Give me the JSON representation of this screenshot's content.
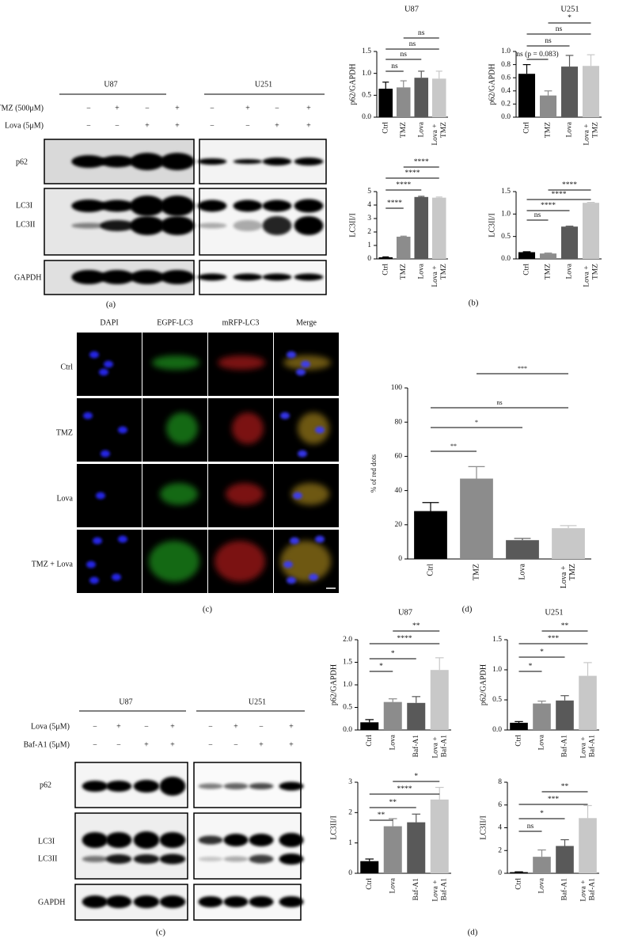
{
  "figure": {
    "panel_labels": [
      "(a)",
      "(b)",
      "(c)",
      "(d)",
      "(c)",
      "(d)"
    ],
    "blots": [
      {
        "cell_lines": [
          "U87",
          "U251"
        ],
        "treatments": [
          {
            "label": "TMZ (500μM)",
            "signs": [
              "−",
              "+",
              "−",
              "+"
            ]
          },
          {
            "label": "Lova (5μM)",
            "signs": [
              "−",
              "−",
              "+",
              "+"
            ]
          }
        ],
        "bands": [
          "p62",
          "LC3I",
          "LC3II",
          "GAPDH"
        ]
      },
      {
        "cell_lines": [
          "U87",
          "U251"
        ],
        "treatments": [
          {
            "label": "Lova (5μM)",
            "signs": [
              "−",
              "+",
              "−",
              "+"
            ]
          },
          {
            "label": "Baf-A1 (5μM)",
            "signs": [
              "−",
              "−",
              "+",
              "+"
            ]
          }
        ],
        "bands": [
          "p62",
          "LC3I",
          "LC3II",
          "GAPDH"
        ]
      }
    ],
    "microscopy": {
      "channels": [
        "DAPI",
        "EGPF-LC3",
        "mRFP-LC3",
        "Merge"
      ],
      "conditions": [
        "Ctrl",
        "TMZ",
        "Lova",
        "TMZ + Lova"
      ]
    }
  },
  "chart_data": [
    {
      "type": "bar",
      "title": "U87",
      "ylabel": "p62/GAPDH",
      "categories": [
        "Ctrl",
        "TMZ",
        "Lova",
        "Lova + TMZ"
      ],
      "values": [
        0.65,
        0.68,
        0.9,
        0.88
      ],
      "errors": [
        0.15,
        0.15,
        0.15,
        0.17
      ],
      "colors": [
        "#000000",
        "#8c8c8c",
        "#595959",
        "#c8c8c8"
      ],
      "ylim": [
        0,
        1.5
      ],
      "yticks": [
        {
          "value": 0,
          "label": "0.0"
        },
        {
          "value": 0.5,
          "label": "0.5"
        },
        {
          "value": 1,
          "label": "1.0"
        },
        {
          "value": 1.5,
          "label": "1.5"
        }
      ],
      "comparisons": [
        {
          "groups": [
            "Ctrl",
            "TMZ"
          ],
          "label": "ns"
        },
        {
          "groups": [
            "Ctrl",
            "Lova"
          ],
          "label": "ns"
        },
        {
          "groups": [
            "Ctrl",
            "Lova + TMZ"
          ],
          "label": "ns"
        },
        {
          "groups": [
            "TMZ",
            "Lova + TMZ"
          ],
          "label": "ns"
        }
      ]
    },
    {
      "type": "bar",
      "title": "U251",
      "ylabel": "p62/GAPDH",
      "categories": [
        "Ctrl",
        "TMZ",
        "Lova",
        "Lova + TMZ"
      ],
      "values": [
        0.66,
        0.33,
        0.77,
        0.78
      ],
      "errors": [
        0.14,
        0.07,
        0.17,
        0.17
      ],
      "colors": [
        "#000000",
        "#8c8c8c",
        "#595959",
        "#c8c8c8"
      ],
      "ylim": [
        0,
        1
      ],
      "yticks": [
        {
          "value": 0,
          "label": "0.0"
        },
        {
          "value": 0.2,
          "label": "0.2"
        },
        {
          "value": 0.4,
          "label": "0.4"
        },
        {
          "value": 0.6,
          "label": "0.6"
        },
        {
          "value": 0.8,
          "label": "0.8"
        },
        {
          "value": 1,
          "label": "1.0"
        }
      ],
      "comparisons": [
        {
          "groups": [
            "Ctrl",
            "TMZ"
          ],
          "label": "ns (p = 0.083)"
        },
        {
          "groups": [
            "Ctrl",
            "Lova"
          ],
          "label": "ns"
        },
        {
          "groups": [
            "Ctrl",
            "Lova + TMZ"
          ],
          "label": "ns"
        },
        {
          "groups": [
            "TMZ",
            "Lova + TMZ"
          ],
          "label": "*"
        }
      ]
    },
    {
      "type": "bar",
      "ylabel": "LC3II/I",
      "categories": [
        "Ctrl",
        "TMZ",
        "Lova",
        "Lova + TMZ"
      ],
      "values": [
        0.12,
        1.65,
        4.6,
        4.55
      ],
      "errors": [
        0.03,
        0.04,
        0.05,
        0.05
      ],
      "colors": [
        "#000000",
        "#8c8c8c",
        "#595959",
        "#c8c8c8"
      ],
      "ylim": [
        0,
        5
      ],
      "yticks": [
        0,
        1,
        2,
        3,
        4,
        5
      ],
      "comparisons": [
        {
          "groups": [
            "Ctrl",
            "TMZ"
          ],
          "label": "****"
        },
        {
          "groups": [
            "Ctrl",
            "Lova"
          ],
          "label": "****"
        },
        {
          "groups": [
            "Ctrl",
            "Lova + TMZ"
          ],
          "label": "****"
        },
        {
          "groups": [
            "TMZ",
            "Lova + TMZ"
          ],
          "label": "****"
        }
      ]
    },
    {
      "type": "bar",
      "ylabel": "LC3II/I",
      "categories": [
        "Ctrl",
        "TMZ",
        "Lova",
        "Lova + TMZ"
      ],
      "values": [
        0.15,
        0.12,
        0.72,
        1.25
      ],
      "errors": [
        0.01,
        0.01,
        0.01,
        0.01
      ],
      "colors": [
        "#000000",
        "#8c8c8c",
        "#595959",
        "#c8c8c8"
      ],
      "ylim": [
        0,
        1.5
      ],
      "yticks": [
        {
          "value": 0,
          "label": "0.0"
        },
        {
          "value": 0.5,
          "label": "0.5"
        },
        {
          "value": 1,
          "label": "1.0"
        },
        {
          "value": 1.5,
          "label": "1.5"
        }
      ],
      "comparisons": [
        {
          "groups": [
            "Ctrl",
            "TMZ"
          ],
          "label": "ns"
        },
        {
          "groups": [
            "Ctrl",
            "Lova"
          ],
          "label": "****"
        },
        {
          "groups": [
            "Ctrl",
            "Lova + TMZ"
          ],
          "label": "****"
        },
        {
          "groups": [
            "TMZ",
            "Lova + TMZ"
          ],
          "label": "****"
        }
      ]
    },
    {
      "type": "bar",
      "ylabel": "% of red dots",
      "categories": [
        "Ctrl",
        "TMZ",
        "Lova",
        "Lova + TMZ"
      ],
      "values": [
        28,
        47,
        11,
        18
      ],
      "errors": [
        5,
        7,
        1,
        1.5
      ],
      "colors": [
        "#000000",
        "#8c8c8c",
        "#595959",
        "#c8c8c8"
      ],
      "ylim": [
        0,
        100
      ],
      "yticks": [
        0,
        20,
        40,
        60,
        80,
        100
      ],
      "comparisons": [
        {
          "groups": [
            "Ctrl",
            "TMZ"
          ],
          "label": "**"
        },
        {
          "groups": [
            "Ctrl",
            "Lova"
          ],
          "label": "*"
        },
        {
          "groups": [
            "Ctrl",
            "Lova + TMZ"
          ],
          "label": "ns"
        },
        {
          "groups": [
            "TMZ",
            "Lova + TMZ"
          ],
          "label": "***"
        }
      ]
    },
    {
      "type": "bar",
      "title": "U87",
      "ylabel": "p62/GAPDH",
      "categories": [
        "Ctrl",
        "Lova",
        "Baf-A1",
        "Lova + Baf-A1"
      ],
      "values": [
        0.17,
        0.62,
        0.6,
        1.33
      ],
      "errors": [
        0.06,
        0.07,
        0.14,
        0.27
      ],
      "colors": [
        "#000000",
        "#8c8c8c",
        "#595959",
        "#c8c8c8"
      ],
      "ylim": [
        0,
        2
      ],
      "yticks": [
        {
          "value": 0,
          "label": "0.0"
        },
        {
          "value": 0.5,
          "label": "0.5"
        },
        {
          "value": 1,
          "label": "1.0"
        },
        {
          "value": 1.5,
          "label": "1.5"
        },
        {
          "value": 2,
          "label": "2.0"
        }
      ],
      "comparisons": [
        {
          "groups": [
            "Ctrl",
            "Lova"
          ],
          "label": "*"
        },
        {
          "groups": [
            "Ctrl",
            "Baf-A1"
          ],
          "label": "*"
        },
        {
          "groups": [
            "Ctrl",
            "Lova + Baf-A1"
          ],
          "label": "****"
        },
        {
          "groups": [
            "Lova",
            "Lova + Baf-A1"
          ],
          "label": "**"
        }
      ]
    },
    {
      "type": "bar",
      "title": "U251",
      "ylabel": "p62/GAPDH",
      "categories": [
        "Ctrl",
        "Lova",
        "Baf-A1",
        "Lova + Baf-A1"
      ],
      "values": [
        0.12,
        0.44,
        0.49,
        0.9
      ],
      "errors": [
        0.02,
        0.04,
        0.08,
        0.22
      ],
      "colors": [
        "#000000",
        "#8c8c8c",
        "#595959",
        "#c8c8c8"
      ],
      "ylim": [
        0,
        1.5
      ],
      "yticks": [
        {
          "value": 0,
          "label": "0.0"
        },
        {
          "value": 0.5,
          "label": "0.5"
        },
        {
          "value": 1,
          "label": "1.0"
        },
        {
          "value": 1.5,
          "label": "1.5"
        }
      ],
      "comparisons": [
        {
          "groups": [
            "Ctrl",
            "Lova"
          ],
          "label": "*"
        },
        {
          "groups": [
            "Ctrl",
            "Baf-A1"
          ],
          "label": "*"
        },
        {
          "groups": [
            "Ctrl",
            "Lova + Baf-A1"
          ],
          "label": "***"
        },
        {
          "groups": [
            "Lova",
            "Lova + Baf-A1"
          ],
          "label": "**"
        }
      ]
    },
    {
      "type": "bar",
      "ylabel": "LC3II/I",
      "categories": [
        "Ctrl",
        "Lova",
        "Baf-A1",
        "Lova + Baf-A1"
      ],
      "values": [
        0.4,
        1.55,
        1.68,
        2.43
      ],
      "errors": [
        0.07,
        0.25,
        0.27,
        0.4
      ],
      "colors": [
        "#000000",
        "#8c8c8c",
        "#595959",
        "#c8c8c8"
      ],
      "ylim": [
        0,
        3
      ],
      "yticks": [
        0,
        1,
        2,
        3
      ],
      "comparisons": [
        {
          "groups": [
            "Ctrl",
            "Lova"
          ],
          "label": "**"
        },
        {
          "groups": [
            "Ctrl",
            "Baf-A1"
          ],
          "label": "**"
        },
        {
          "groups": [
            "Ctrl",
            "Lova + Baf-A1"
          ],
          "label": "****"
        },
        {
          "groups": [
            "Lova",
            "Lova + Baf-A1"
          ],
          "label": "*"
        }
      ]
    },
    {
      "type": "bar",
      "ylabel": "LC3II/I",
      "categories": [
        "Ctrl",
        "Lova",
        "Baf-A1",
        "Lova + Baf-A1"
      ],
      "values": [
        0.1,
        1.45,
        2.4,
        4.85
      ],
      "errors": [
        0.03,
        0.6,
        0.55,
        1.1
      ],
      "colors": [
        "#000000",
        "#8c8c8c",
        "#595959",
        "#c8c8c8"
      ],
      "ylim": [
        0,
        8
      ],
      "yticks": [
        0,
        2,
        4,
        6,
        8
      ],
      "comparisons": [
        {
          "groups": [
            "Ctrl",
            "Lova"
          ],
          "label": "ns"
        },
        {
          "groups": [
            "Ctrl",
            "Baf-A1"
          ],
          "label": "*"
        },
        {
          "groups": [
            "Ctrl",
            "Lova + Baf-A1"
          ],
          "label": "***"
        },
        {
          "groups": [
            "Lova",
            "Lova + Baf-A1"
          ],
          "label": "**"
        }
      ]
    }
  ]
}
